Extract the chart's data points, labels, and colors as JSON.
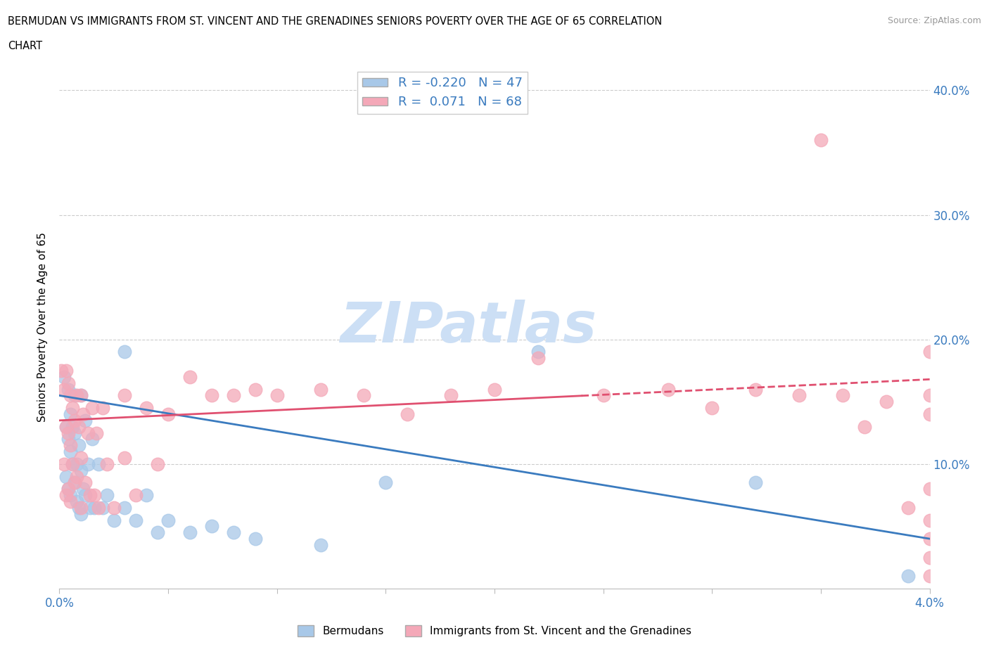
{
  "title_line1": "BERMUDAN VS IMMIGRANTS FROM ST. VINCENT AND THE GRENADINES SENIORS POVERTY OVER THE AGE OF 65 CORRELATION",
  "title_line2": "CHART",
  "source_text": "Source: ZipAtlas.com",
  "ylabel": "Seniors Poverty Over the Age of 65",
  "xlim": [
    0.0,
    0.04
  ],
  "ylim": [
    0.0,
    0.42
  ],
  "yticks": [
    0.0,
    0.1,
    0.2,
    0.3,
    0.4
  ],
  "ytick_labels": [
    "",
    "10.0%",
    "20.0%",
    "30.0%",
    "40.0%"
  ],
  "grid_hlines": [
    0.1,
    0.2,
    0.3,
    0.4
  ],
  "bermuda_R": -0.22,
  "bermuda_N": 47,
  "svg_R": 0.071,
  "svg_N": 68,
  "bermuda_color": "#a8c8e8",
  "svg_color": "#f4a8b8",
  "trendline_bermuda_color": "#3a7bbf",
  "trendline_svg_color": "#e05070",
  "watermark_text": "ZIPatlas",
  "watermark_color": "#ccdff5",
  "bermuda_scatter_x": [
    0.0002,
    0.0003,
    0.0003,
    0.0004,
    0.0004,
    0.0004,
    0.0005,
    0.0005,
    0.0005,
    0.0006,
    0.0006,
    0.0007,
    0.0007,
    0.0007,
    0.0008,
    0.0008,
    0.0009,
    0.0009,
    0.001,
    0.001,
    0.001,
    0.0011,
    0.0012,
    0.0012,
    0.0013,
    0.0014,
    0.0015,
    0.0016,
    0.0018,
    0.002,
    0.0022,
    0.0025,
    0.003,
    0.003,
    0.0035,
    0.004,
    0.0045,
    0.005,
    0.006,
    0.007,
    0.008,
    0.009,
    0.012,
    0.015,
    0.022,
    0.032,
    0.039
  ],
  "bermuda_scatter_y": [
    0.17,
    0.13,
    0.09,
    0.16,
    0.12,
    0.08,
    0.14,
    0.11,
    0.075,
    0.13,
    0.1,
    0.155,
    0.125,
    0.085,
    0.1,
    0.07,
    0.115,
    0.065,
    0.155,
    0.095,
    0.06,
    0.08,
    0.135,
    0.075,
    0.1,
    0.065,
    0.12,
    0.065,
    0.1,
    0.065,
    0.075,
    0.055,
    0.19,
    0.065,
    0.055,
    0.075,
    0.045,
    0.055,
    0.045,
    0.05,
    0.045,
    0.04,
    0.035,
    0.085,
    0.19,
    0.085,
    0.01
  ],
  "svg_scatter_x": [
    0.0001,
    0.0002,
    0.0002,
    0.0003,
    0.0003,
    0.0003,
    0.0004,
    0.0004,
    0.0004,
    0.0005,
    0.0005,
    0.0005,
    0.0006,
    0.0006,
    0.0007,
    0.0007,
    0.0008,
    0.0008,
    0.0009,
    0.001,
    0.001,
    0.001,
    0.0011,
    0.0012,
    0.0013,
    0.0014,
    0.0015,
    0.0016,
    0.0017,
    0.0018,
    0.002,
    0.0022,
    0.0025,
    0.003,
    0.003,
    0.0035,
    0.004,
    0.0045,
    0.005,
    0.006,
    0.007,
    0.008,
    0.009,
    0.01,
    0.012,
    0.014,
    0.016,
    0.018,
    0.02,
    0.022,
    0.025,
    0.028,
    0.03,
    0.032,
    0.034,
    0.035,
    0.036,
    0.037,
    0.038,
    0.039,
    0.04,
    0.04,
    0.04,
    0.04,
    0.04,
    0.04,
    0.04,
    0.04
  ],
  "svg_scatter_y": [
    0.175,
    0.16,
    0.1,
    0.175,
    0.13,
    0.075,
    0.165,
    0.125,
    0.08,
    0.155,
    0.115,
    0.07,
    0.145,
    0.1,
    0.135,
    0.085,
    0.155,
    0.09,
    0.13,
    0.155,
    0.105,
    0.065,
    0.14,
    0.085,
    0.125,
    0.075,
    0.145,
    0.075,
    0.125,
    0.065,
    0.145,
    0.1,
    0.065,
    0.155,
    0.105,
    0.075,
    0.145,
    0.1,
    0.14,
    0.17,
    0.155,
    0.155,
    0.16,
    0.155,
    0.16,
    0.155,
    0.14,
    0.155,
    0.16,
    0.185,
    0.155,
    0.16,
    0.145,
    0.16,
    0.155,
    0.36,
    0.155,
    0.13,
    0.15,
    0.065,
    0.155,
    0.055,
    0.04,
    0.14,
    0.08,
    0.19,
    0.025,
    0.01
  ],
  "trendline_bermuda_x0": 0.0,
  "trendline_bermuda_y0": 0.155,
  "trendline_bermuda_x1": 0.04,
  "trendline_bermuda_y1": 0.04,
  "trendline_svg_x0": 0.0,
  "trendline_svg_y0": 0.135,
  "trendline_svg_x1": 0.04,
  "trendline_svg_y1": 0.168
}
